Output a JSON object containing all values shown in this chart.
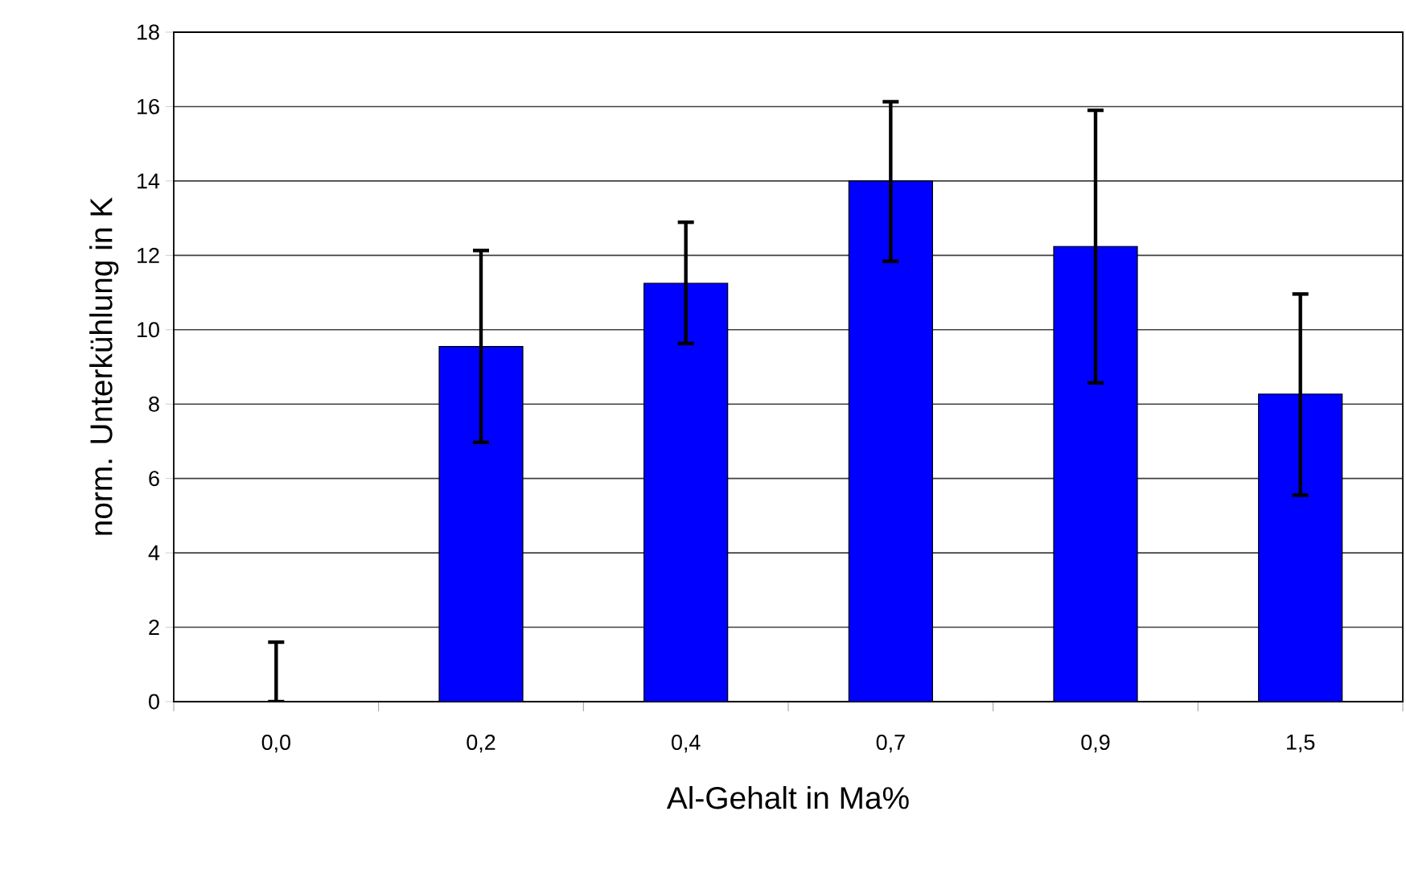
{
  "chart_data": {
    "type": "bar",
    "xlabel": "Al-Gehalt in Ma%",
    "ylabel": "norm. Unterkühlung in K",
    "categories": [
      "0,0",
      "0,2",
      "0,4",
      "0,7",
      "0,9",
      "1,5"
    ],
    "values": [
      0,
      9.55,
      11.25,
      14.0,
      12.24,
      8.27
    ],
    "errors": [
      [
        0,
        1.6
      ],
      [
        6.97,
        12.13
      ],
      [
        9.63,
        12.89
      ],
      [
        11.84,
        16.13
      ],
      [
        8.57,
        15.9
      ],
      [
        5.55,
        10.96
      ]
    ],
    "color": "#0000ff",
    "ylim": [
      0,
      18
    ],
    "yticks": [
      0,
      2,
      4,
      6,
      8,
      10,
      12,
      14,
      16,
      18
    ],
    "grid": "y"
  }
}
